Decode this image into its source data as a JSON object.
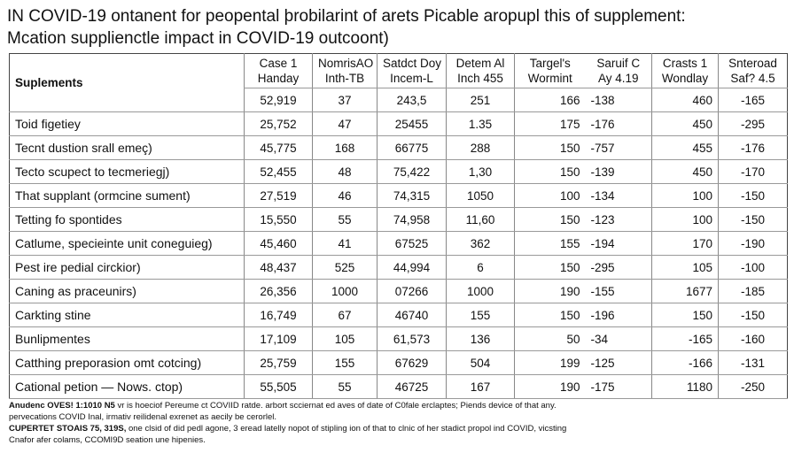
{
  "header": {
    "title": "IN COVID-19 ontanent for peopental þrobilarint of arets Picable aropupl this of supplement:",
    "subtitle": "Mcation supplienctle impact in COVID-19 outcoont)"
  },
  "table": {
    "row_header_label": "Suplements",
    "columns": [
      {
        "line1": "Case 1",
        "line2": "Handay"
      },
      {
        "line1": "NomrisAO",
        "line2": "Inth-TB"
      },
      {
        "line1": "Satdct Doy",
        "line2": "Incem-L"
      },
      {
        "line1": "Detem Al",
        "line2": "Inch 455"
      },
      {
        "line1": "Targel's",
        "line2": "Wormint"
      },
      {
        "line1": "Saruif C",
        "line2": "Ay 4.19"
      },
      {
        "line1": "Crasts 1",
        "line2": "Wondlay"
      },
      {
        "line1": "Snteroad",
        "line2": "Saf? 4.5"
      }
    ],
    "summary_row": [
      "52,919",
      "37",
      "243,5",
      "251",
      "166",
      "-138",
      "460",
      "-165"
    ],
    "rows": [
      {
        "label": "Toid figetiey",
        "cells": [
          "25,752",
          "47",
          "25455",
          "1.35",
          "175",
          "-176",
          "450",
          "-295"
        ]
      },
      {
        "label": "Tecnt dustion srall emeç)",
        "cells": [
          "45,775",
          "168",
          "66775",
          "288",
          "150",
          "-757",
          "455",
          "-176"
        ]
      },
      {
        "label": "Tecto scupect to tecmeriegj)",
        "cells": [
          "52,455",
          "48",
          "75,422",
          "1,30",
          "150",
          "-139",
          "450",
          "-170"
        ]
      },
      {
        "label": "That supplant (ormcine sument)",
        "cells": [
          "27,519",
          "46",
          "74,315",
          "1050",
          "100",
          "-134",
          "100",
          "-150"
        ]
      },
      {
        "label": "Tetting fo spontides",
        "cells": [
          "15,550",
          "55",
          "74,958",
          "11,60",
          "150",
          "-123",
          "100",
          "-150"
        ]
      },
      {
        "label": "Catlume, specieinte unit coneguieg)",
        "cells": [
          "45,460",
          "41",
          "67525",
          "362",
          "155",
          "-194",
          "170",
          "-190"
        ]
      },
      {
        "label": "Pest ire pedial circkior)",
        "cells": [
          "48,437",
          "525",
          "44,994",
          "6",
          "150",
          "-295",
          "105",
          "-100"
        ]
      },
      {
        "label": "Caning as praceunirs)",
        "cells": [
          "26,356",
          "1000",
          "07266",
          "1000",
          "190",
          "-155",
          "1677",
          "-185"
        ]
      },
      {
        "label": "Carkting stine",
        "cells": [
          "16,749",
          "67",
          "46740",
          "155",
          "150",
          "-196",
          "150",
          "-150"
        ]
      },
      {
        "label": "Bunlipmentes",
        "cells": [
          "17,109",
          "105",
          "61,573",
          "136",
          "50",
          "-34",
          "-165",
          "-160"
        ]
      },
      {
        "label": "Catthing preporasion omt cotcing)",
        "cells": [
          "25,759",
          "155",
          "67629",
          "504",
          "199",
          "-125",
          "-166",
          "-131"
        ]
      },
      {
        "label": "Cational petion — Nows. ctop)",
        "cells": [
          "55,505",
          "55",
          "46725",
          "167",
          "190",
          "-175",
          "1180",
          "-250"
        ]
      }
    ]
  },
  "footnotes": [
    {
      "bold": "Anudenc OVES! 1:1010 N5",
      "text": "vr is hoeciof Pereume ct COVIID ratde. arbort scciernat ed aves of date of C0fale erclaptes; Piends device of that any."
    },
    {
      "text": "pervecations COVID Inal, irmativ reilidenal exrenet as aecily be cerorlel."
    },
    {
      "bold": "CUPERTET STOAIS 75, 319S,",
      "text": "one clsid of did pedl agone, 3 eread latelly nopot of stipling ion of that to clnic of her stadict propol ind COVID, vicsting"
    },
    {
      "text": "Cnafor afer colams, CCOMI9D seation une hipenies."
    }
  ]
}
